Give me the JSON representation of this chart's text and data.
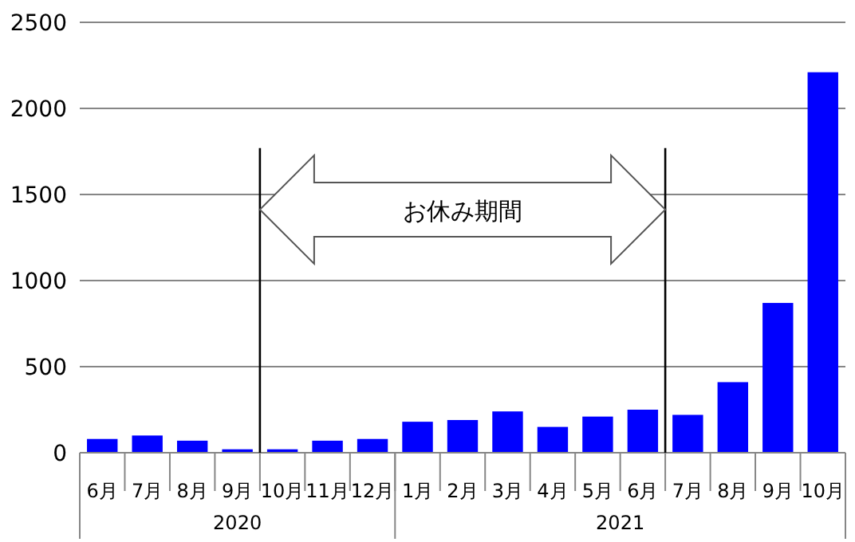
{
  "chart_data": {
    "type": "bar",
    "categories": [
      "6月",
      "7月",
      "8月",
      "9月",
      "10月",
      "11月",
      "12月",
      "1月",
      "2月",
      "3月",
      "4月",
      "5月",
      "6月",
      "7月",
      "8月",
      "9月",
      "10月"
    ],
    "values": [
      80,
      100,
      70,
      20,
      20,
      70,
      80,
      180,
      190,
      240,
      150,
      210,
      250,
      220,
      410,
      870,
      2210
    ],
    "color": "#0000ff",
    "ylim": [
      0,
      2500
    ],
    "yticks": [
      0,
      500,
      1000,
      1500,
      2000,
      2500
    ],
    "grid": "y",
    "annotations": [
      "お休み期間",
      "2020",
      "2021"
    ]
  }
}
